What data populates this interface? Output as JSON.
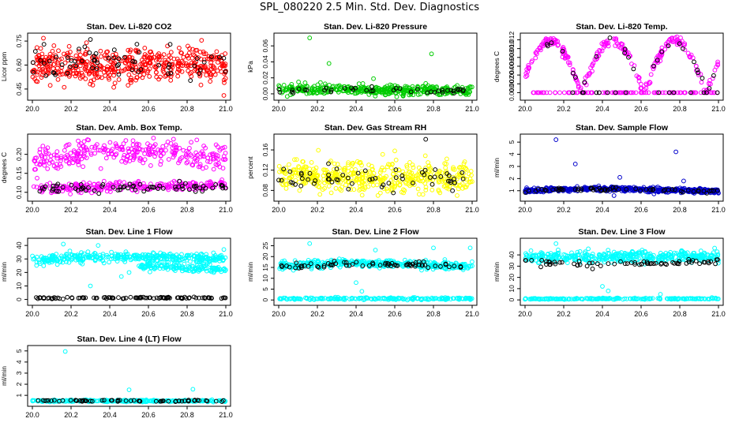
{
  "title": "SPL_080220  2.5 Min. Std. Dev. Diagnostics",
  "chart_data": [
    {
      "type": "scatter",
      "title": "Stan. Dev. Li-820 CO2",
      "ylabel": "Licor ppm",
      "xlim": [
        20.0,
        21.0
      ],
      "ylim": [
        0.4,
        0.78
      ],
      "xticks": [
        "20.0",
        "20.2",
        "20.4",
        "20.6",
        "20.8",
        "21.0"
      ],
      "yticks": [
        {
          "v": 0.45,
          "label": "0.45"
        },
        {
          "v": 0.6,
          "label": "0.60"
        },
        {
          "v": 0.75,
          "label": "0.75"
        }
      ],
      "series": [
        {
          "name": "cloud",
          "color": "#ff0000",
          "n": 500,
          "base": [
            0.6,
            0.6
          ],
          "sd": 0.055,
          "seed": 11
        },
        {
          "name": "black",
          "color": "#000000",
          "n": 60,
          "base": [
            0.62,
            0.61
          ],
          "sd": 0.06,
          "seed": 12
        }
      ],
      "outliers": [
        {
          "x": 20.06,
          "y": 0.73,
          "color": "#000000"
        },
        {
          "x": 20.3,
          "y": 0.76,
          "color": "#000000"
        },
        {
          "x": 20.99,
          "y": 0.41,
          "color": "#ff0000"
        },
        {
          "x": 20.28,
          "y": 0.74,
          "color": "#ff0000"
        }
      ]
    },
    {
      "type": "scatter",
      "title": "Stan. Dev. Li-820 Pressure",
      "ylabel": "kPa",
      "xlim": [
        20.0,
        21.0
      ],
      "ylim": [
        -0.004,
        0.072
      ],
      "xticks": [
        "20.0",
        "20.2",
        "20.4",
        "20.6",
        "20.8",
        "21.0"
      ],
      "yticks": [
        {
          "v": 0.0,
          "label": "0.00"
        },
        {
          "v": 0.02,
          "label": "0.02"
        },
        {
          "v": 0.04,
          "label": "0.04"
        },
        {
          "v": 0.06,
          "label": "0.06"
        }
      ],
      "series": [
        {
          "name": "cloud",
          "color": "#00cc00",
          "n": 400,
          "base": [
            0.006,
            0.004
          ],
          "sd": 0.003,
          "seed": 21
        },
        {
          "name": "black",
          "color": "#000000",
          "n": 40,
          "base": [
            0.005,
            0.004
          ],
          "sd": 0.002,
          "seed": 22
        }
      ],
      "outliers": [
        {
          "x": 20.16,
          "y": 0.07,
          "color": "#00cc00"
        },
        {
          "x": 20.26,
          "y": 0.038,
          "color": "#00cc00"
        },
        {
          "x": 20.49,
          "y": 0.019,
          "color": "#00cc00"
        },
        {
          "x": 20.79,
          "y": 0.05,
          "color": "#00cc00"
        },
        {
          "x": 20.76,
          "y": 0.013,
          "color": "#00cc00"
        },
        {
          "x": 20.99,
          "y": 0.009,
          "color": "#00cc00"
        }
      ]
    },
    {
      "type": "scatter",
      "title": "Stan. Dev. Li-820 Temp.",
      "ylabel": "degrees C",
      "xlim": [
        20.0,
        21.0
      ],
      "ylim": [
        -0.001,
        0.0128
      ],
      "xticks": [
        "20.0",
        "20.2",
        "20.4",
        "20.6",
        "20.8",
        "21.0"
      ],
      "yticks": [
        {
          "v": 0.0,
          "label": "0.000"
        },
        {
          "v": 0.002,
          "label": "0.002"
        },
        {
          "v": 0.004,
          "label": "0.004"
        },
        {
          "v": 0.006,
          "label": "0.006"
        },
        {
          "v": 0.008,
          "label": "0.008"
        },
        {
          "v": 0.01,
          "label": "0.010"
        },
        {
          "v": 0.012,
          "label": "0.012"
        }
      ],
      "series": [
        {
          "name": "cloud",
          "color": "#ff00ff",
          "n": 360,
          "base": [
            0.006,
            0.006
          ],
          "sd": 0.0005,
          "seed": 31,
          "wave": true
        },
        {
          "name": "black",
          "color": "#000000",
          "n": 40,
          "base": [
            0.006,
            0.006
          ],
          "sd": 0.0005,
          "seed": 32,
          "wave": true
        }
      ],
      "outliers": []
    },
    {
      "type": "scatter",
      "title": "Stan. Dev. Amb. Box Temp.",
      "ylabel": "degrees C",
      "xlim": [
        20.0,
        21.0
      ],
      "ylim": [
        0.085,
        0.245
      ],
      "xticks": [
        "20.0",
        "20.2",
        "20.4",
        "20.6",
        "20.8",
        "21.0"
      ],
      "yticks": [
        {
          "v": 0.1,
          "label": "0.10"
        },
        {
          "v": 0.15,
          "label": "0.15"
        },
        {
          "v": 0.2,
          "label": "0.20"
        }
      ],
      "series": [
        {
          "name": "upper",
          "color": "#ff00ff",
          "n": 300,
          "base": [
            0.18,
            0.19
          ],
          "sd": 0.018,
          "seed": 41,
          "hump": 0.03
        },
        {
          "name": "lower",
          "color": "#ff00ff",
          "n": 250,
          "base": [
            0.11,
            0.12
          ],
          "sd": 0.007,
          "seed": 42
        },
        {
          "name": "black",
          "color": "#000000",
          "n": 70,
          "base": [
            0.108,
            0.115
          ],
          "sd": 0.006,
          "seed": 43
        }
      ],
      "outliers": [
        {
          "x": 20.85,
          "y": 0.238,
          "color": "#ff00ff"
        },
        {
          "x": 20.19,
          "y": 0.226,
          "color": "#ff00ff"
        }
      ]
    },
    {
      "type": "scatter",
      "title": "Stan. Dev. Gas Stream RH",
      "ylabel": "percent",
      "xlim": [
        20.0,
        21.0
      ],
      "ylim": [
        0.065,
        0.185
      ],
      "xticks": [
        "20.0",
        "20.2",
        "20.4",
        "20.6",
        "20.8",
        "21.0"
      ],
      "yticks": [
        {
          "v": 0.08,
          "label": "0.08"
        },
        {
          "v": 0.12,
          "label": "0.12"
        },
        {
          "v": 0.16,
          "label": "0.16"
        }
      ],
      "series": [
        {
          "name": "cloud",
          "color": "#ffff00",
          "n": 480,
          "base": [
            0.107,
            0.107
          ],
          "sd": 0.015,
          "seed": 51
        },
        {
          "name": "black",
          "color": "#000000",
          "n": 60,
          "base": [
            0.103,
            0.103
          ],
          "sd": 0.011,
          "seed": 52
        }
      ],
      "outliers": [
        {
          "x": 20.76,
          "y": 0.181,
          "color": "#000000"
        },
        {
          "x": 20.6,
          "y": 0.158,
          "color": "#ffff00"
        }
      ]
    },
    {
      "type": "scatter",
      "title": "Stan. Dev. Sample Flow",
      "ylabel": "ml/min",
      "xlim": [
        20.0,
        21.0
      ],
      "ylim": [
        0.4,
        5.4
      ],
      "xticks": [
        "20.0",
        "20.2",
        "20.4",
        "20.6",
        "20.8",
        "21.0"
      ],
      "yticks": [
        {
          "v": 1,
          "label": "1"
        },
        {
          "v": 2,
          "label": "2"
        },
        {
          "v": 3,
          "label": "3"
        },
        {
          "v": 4,
          "label": "4"
        },
        {
          "v": 5,
          "label": "5"
        }
      ],
      "series": [
        {
          "name": "cloud",
          "color": "#0000cc",
          "n": 500,
          "base": [
            1.0,
            0.95
          ],
          "sd": 0.09,
          "seed": 61,
          "hump": 0.25
        },
        {
          "name": "black",
          "color": "#000000",
          "n": 60,
          "base": [
            1.0,
            0.95
          ],
          "sd": 0.07,
          "seed": 62,
          "hump": 0.2
        }
      ],
      "outliers": [
        {
          "x": 20.16,
          "y": 5.2,
          "color": "#0000cc"
        },
        {
          "x": 20.26,
          "y": 3.2,
          "color": "#0000cc"
        },
        {
          "x": 20.78,
          "y": 4.2,
          "color": "#0000cc"
        },
        {
          "x": 20.49,
          "y": 2.1,
          "color": "#0000cc"
        },
        {
          "x": 20.82,
          "y": 1.8,
          "color": "#0000cc"
        },
        {
          "x": 20.46,
          "y": 0.6,
          "color": "#0000cc"
        }
      ]
    },
    {
      "type": "scatter",
      "title": "Stan. Dev. Line 1 Flow",
      "ylabel": "ml/min",
      "xlim": [
        20.0,
        21.0
      ],
      "ylim": [
        -2,
        43
      ],
      "xticks": [
        "20.0",
        "20.2",
        "20.4",
        "20.6",
        "20.8",
        "21.0"
      ],
      "yticks": [
        {
          "v": 0,
          "label": "0"
        },
        {
          "v": 10,
          "label": "10"
        },
        {
          "v": 20,
          "label": "20"
        },
        {
          "v": 30,
          "label": "30"
        },
        {
          "v": 40,
          "label": "40"
        }
      ],
      "series": [
        {
          "name": "upper",
          "color": "#00ffff",
          "n": 360,
          "base": [
            29,
            30
          ],
          "sd": 1.8,
          "seed": 71,
          "hump": 3
        },
        {
          "name": "lower-branch",
          "color": "#00ffff",
          "n": 140,
          "base": [
            28,
            22
          ],
          "sd": 1.2,
          "seed": 72,
          "xrange": [
            20.55,
            21.0
          ]
        },
        {
          "name": "baseline",
          "color": "#000000",
          "n": 100,
          "base": [
            1.2,
            1.2
          ],
          "sd": 0.3,
          "seed": 73
        }
      ],
      "outliers": [
        {
          "x": 20.16,
          "y": 41,
          "color": "#00ffff"
        },
        {
          "x": 20.3,
          "y": 10,
          "color": "#00ffff"
        },
        {
          "x": 20.5,
          "y": 20,
          "color": "#00ffff"
        },
        {
          "x": 20.46,
          "y": 17,
          "color": "#00ffff"
        },
        {
          "x": 20.99,
          "y": 37,
          "color": "#00ffff"
        },
        {
          "x": 20.34,
          "y": 40,
          "color": "#00ffff"
        }
      ]
    },
    {
      "type": "scatter",
      "title": "Stan. Dev. Line 2 Flow",
      "ylabel": "ml/min",
      "xlim": [
        20.0,
        21.0
      ],
      "ylim": [
        -1,
        27
      ],
      "xticks": [
        "20.0",
        "20.2",
        "20.4",
        "20.6",
        "20.8",
        "21.0"
      ],
      "yticks": [
        {
          "v": 0,
          "label": "0"
        },
        {
          "v": 5,
          "label": "5"
        },
        {
          "v": 10,
          "label": "10"
        },
        {
          "v": 15,
          "label": "15"
        },
        {
          "v": 20,
          "label": "20"
        },
        {
          "v": 25,
          "label": "25"
        }
      ],
      "series": [
        {
          "name": "main",
          "color": "#00ffff",
          "n": 400,
          "base": [
            15.5,
            15.5
          ],
          "sd": 0.9,
          "seed": 81,
          "hump": 2
        },
        {
          "name": "baseline",
          "color": "#00ffff",
          "n": 200,
          "base": [
            0.6,
            0.6
          ],
          "sd": 0.25,
          "seed": 82
        },
        {
          "name": "black",
          "color": "#000000",
          "n": 70,
          "base": [
            15,
            15.5
          ],
          "sd": 0.6,
          "seed": 83,
          "hump": 2
        }
      ],
      "outliers": [
        {
          "x": 20.16,
          "y": 26,
          "color": "#00ffff"
        },
        {
          "x": 20.4,
          "y": 8,
          "color": "#00ffff"
        },
        {
          "x": 20.43,
          "y": 4,
          "color": "#00ffff"
        },
        {
          "x": 20.5,
          "y": 23,
          "color": "#00ffff"
        },
        {
          "x": 20.8,
          "y": 24,
          "color": "#00ffff"
        },
        {
          "x": 20.99,
          "y": 24,
          "color": "#00ffff"
        }
      ]
    },
    {
      "type": "scatter",
      "title": "Stan. Dev. Line 3 Flow",
      "ylabel": "ml/min",
      "xlim": [
        20.0,
        21.0
      ],
      "ylim": [
        -2,
        52
      ],
      "xticks": [
        "20.0",
        "20.2",
        "20.4",
        "20.6",
        "20.8",
        "21.0"
      ],
      "yticks": [
        {
          "v": 0,
          "label": "0"
        },
        {
          "v": 10,
          "label": "10"
        },
        {
          "v": 20,
          "label": "20"
        },
        {
          "v": 30,
          "label": "30"
        },
        {
          "v": 40,
          "label": "40"
        }
      ],
      "series": [
        {
          "name": "main",
          "color": "#00ffff",
          "n": 420,
          "base": [
            38,
            38
          ],
          "sd": 2.5,
          "seed": 91
        },
        {
          "name": "baseline",
          "color": "#00ffff",
          "n": 200,
          "base": [
            1.0,
            1.0
          ],
          "sd": 0.3,
          "seed": 92
        },
        {
          "name": "black",
          "color": "#000000",
          "n": 70,
          "base": [
            34,
            34
          ],
          "sd": 1.5,
          "seed": 93,
          "hump": -3
        }
      ],
      "outliers": [
        {
          "x": 20.16,
          "y": 50,
          "color": "#00ffff"
        },
        {
          "x": 20.4,
          "y": 12,
          "color": "#00ffff"
        },
        {
          "x": 20.43,
          "y": 8,
          "color": "#00ffff"
        },
        {
          "x": 20.98,
          "y": 46,
          "color": "#00ffff"
        },
        {
          "x": 20.7,
          "y": 5,
          "color": "#00ffff"
        }
      ]
    },
    {
      "type": "scatter",
      "title": "Stan. Dev. Line 4 (LT) Flow",
      "ylabel": "ml/min",
      "xlim": [
        20.0,
        21.0
      ],
      "ylim": [
        0.3,
        5.2
      ],
      "xticks": [
        "20.0",
        "20.2",
        "20.4",
        "20.6",
        "20.8",
        "21.0"
      ],
      "yticks": [
        {
          "v": 1,
          "label": "1"
        },
        {
          "v": 2,
          "label": "2"
        },
        {
          "v": 3,
          "label": "3"
        },
        {
          "v": 4,
          "label": "4"
        },
        {
          "v": 5,
          "label": "5"
        }
      ],
      "series": [
        {
          "name": "cloud",
          "color": "#00ffff",
          "n": 300,
          "base": [
            0.5,
            0.5
          ],
          "sd": 0.04,
          "seed": 101
        },
        {
          "name": "black",
          "color": "#000000",
          "n": 60,
          "base": [
            0.52,
            0.5
          ],
          "sd": 0.03,
          "seed": 102
        }
      ],
      "outliers": [
        {
          "x": 20.17,
          "y": 4.95,
          "color": "#00ffff"
        },
        {
          "x": 20.5,
          "y": 1.5,
          "color": "#00ffff"
        },
        {
          "x": 20.83,
          "y": 1.55,
          "color": "#00ffff"
        }
      ]
    }
  ]
}
